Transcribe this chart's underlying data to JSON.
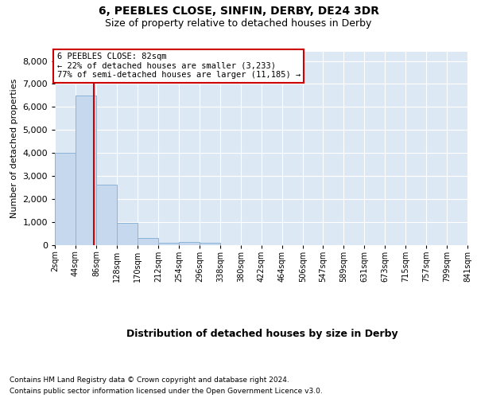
{
  "title1": "6, PEEBLES CLOSE, SINFIN, DERBY, DE24 3DR",
  "title2": "Size of property relative to detached houses in Derby",
  "xlabel": "Distribution of detached houses by size in Derby",
  "ylabel": "Number of detached properties",
  "bar_color": "#c5d8ee",
  "bar_edge_color": "#8ab4d8",
  "background_color": "#dde8f5",
  "bin_starts": [
    2,
    44,
    86,
    128,
    170,
    212,
    254,
    296,
    338,
    380,
    422,
    464,
    506,
    547,
    589,
    631,
    673,
    715,
    757,
    799
  ],
  "bin_width": 42,
  "bar_heights": [
    4000,
    6500,
    2600,
    950,
    300,
    100,
    110,
    95,
    0,
    0,
    0,
    0,
    0,
    0,
    0,
    0,
    0,
    0,
    0,
    0
  ],
  "property_size": 82,
  "vline_color": "#cc0000",
  "annotation_line1": "6 PEEBLES CLOSE: 82sqm",
  "annotation_line2": "← 22% of detached houses are smaller (3,233)",
  "annotation_line3": "77% of semi-detached houses are larger (11,185) →",
  "annotation_box_color": "#cc0000",
  "ylim_max": 8400,
  "yticks": [
    0,
    1000,
    2000,
    3000,
    4000,
    5000,
    6000,
    7000,
    8000
  ],
  "xtick_labels": [
    "2sqm",
    "44sqm",
    "86sqm",
    "128sqm",
    "170sqm",
    "212sqm",
    "254sqm",
    "296sqm",
    "338sqm",
    "380sqm",
    "422sqm",
    "464sqm",
    "506sqm",
    "547sqm",
    "589sqm",
    "631sqm",
    "673sqm",
    "715sqm",
    "757sqm",
    "799sqm",
    "841sqm"
  ],
  "footnote1": "Contains HM Land Registry data © Crown copyright and database right 2024.",
  "footnote2": "Contains public sector information licensed under the Open Government Licence v3.0."
}
